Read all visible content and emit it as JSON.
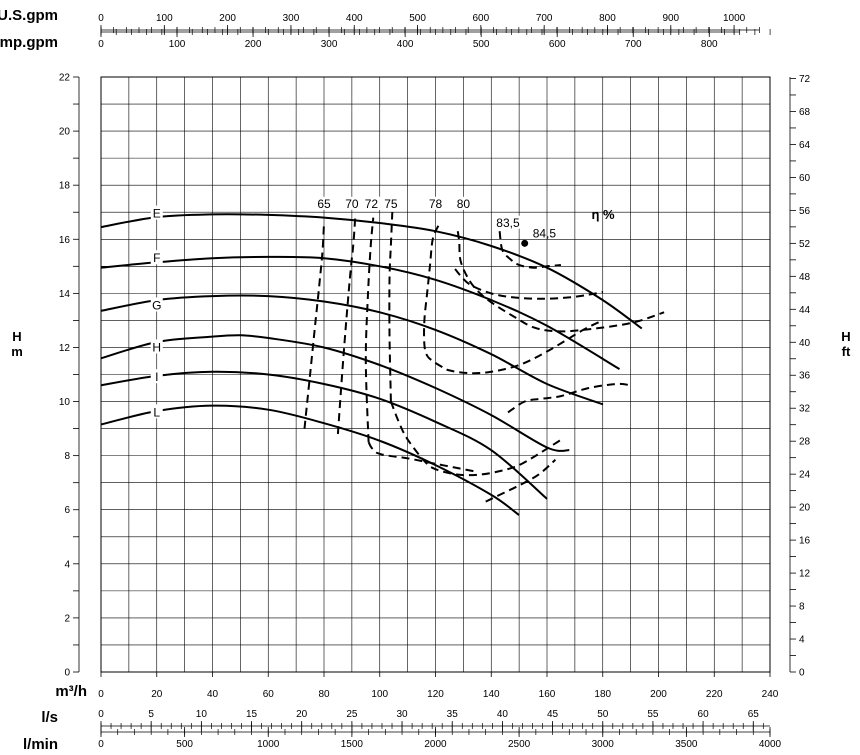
{
  "chart_data": {
    "type": "line",
    "title": "",
    "scales": {
      "us_gpm": {
        "label": "U.S.gpm",
        "ticks": [
          0,
          100,
          200,
          300,
          400,
          500,
          600,
          700,
          800,
          900,
          1000
        ],
        "minor_step": 20
      },
      "imp_gpm": {
        "label": "Imp.gpm",
        "ticks": [
          0,
          100,
          200,
          300,
          400,
          500,
          600,
          700,
          800
        ],
        "minor_step": 20
      },
      "m3h": {
        "label": "m³/h",
        "ticks": [
          0,
          20,
          40,
          60,
          80,
          100,
          120,
          140,
          160,
          180,
          200,
          220,
          240
        ]
      },
      "ls": {
        "label": "l/s",
        "ticks": [
          0,
          5,
          10,
          15,
          20,
          25,
          30,
          35,
          40,
          45,
          50,
          55,
          60,
          65
        ],
        "minor_step": 1
      },
      "lmin": {
        "label": "l/min",
        "ticks": [
          0,
          500,
          1000,
          1500,
          2000,
          2500,
          3000,
          3500,
          4000
        ],
        "minor_step": 100
      }
    },
    "xlim": [
      0,
      240
    ],
    "y_left": {
      "label_line1": "H",
      "label_line2": "m",
      "lim": [
        0,
        22
      ],
      "ticks": [
        0,
        2,
        4,
        6,
        8,
        10,
        12,
        14,
        16,
        18,
        20,
        22
      ]
    },
    "y_right": {
      "label_line1": "H",
      "label_line2": "ft",
      "lim": [
        0,
        72.18
      ],
      "ticks": [
        0,
        4,
        8,
        12,
        16,
        20,
        24,
        28,
        32,
        36,
        40,
        44,
        48,
        52,
        56,
        60,
        64,
        68,
        72
      ]
    },
    "grid": true,
    "series": [
      {
        "name": "E",
        "label_at": [
          20,
          16.95
        ],
        "x": [
          0,
          20,
          40,
          60,
          80,
          100,
          120,
          140,
          160,
          180,
          194
        ],
        "y": [
          16.45,
          16.82,
          16.92,
          16.9,
          16.8,
          16.6,
          16.3,
          15.75,
          14.95,
          13.75,
          12.7
        ]
      },
      {
        "name": "F",
        "label_at": [
          20,
          15.3
        ],
        "x": [
          0,
          20,
          40,
          60,
          80,
          100,
          120,
          140,
          160,
          186
        ],
        "y": [
          14.95,
          15.15,
          15.3,
          15.35,
          15.3,
          15.0,
          14.5,
          13.75,
          12.8,
          11.2
        ]
      },
      {
        "name": "G",
        "label_at": [
          20,
          13.55
        ],
        "x": [
          0,
          20,
          40,
          60,
          80,
          100,
          120,
          140,
          160,
          180
        ],
        "y": [
          13.35,
          13.75,
          13.9,
          13.9,
          13.7,
          13.3,
          12.65,
          11.75,
          10.65,
          9.9
        ]
      },
      {
        "name": "H",
        "label_at": [
          20,
          12.0
        ],
        "x": [
          0,
          20,
          40,
          50,
          60,
          80,
          100,
          120,
          140,
          160,
          168
        ],
        "y": [
          11.6,
          12.2,
          12.4,
          12.45,
          12.35,
          12.0,
          11.35,
          10.5,
          9.5,
          8.3,
          8.2
        ]
      },
      {
        "name": "I",
        "label_at": [
          20,
          10.9
        ],
        "x": [
          0,
          20,
          40,
          60,
          80,
          100,
          120,
          140,
          160
        ],
        "y": [
          10.6,
          10.95,
          11.1,
          11.0,
          10.65,
          10.1,
          9.25,
          8.2,
          6.4
        ]
      },
      {
        "name": "L",
        "label_at": [
          20,
          9.6
        ],
        "x": [
          0,
          20,
          40,
          60,
          80,
          100,
          120,
          140,
          150
        ],
        "y": [
          9.15,
          9.65,
          9.85,
          9.7,
          9.2,
          8.55,
          7.65,
          6.55,
          5.8
        ]
      }
    ],
    "efficiency_curves": [
      {
        "label": "65",
        "label_at": [
          80,
          17.2
        ],
        "x": [
          73,
          75,
          77,
          78.5,
          79.5,
          80
        ],
        "y": [
          9.0,
          11.0,
          13.0,
          14.5,
          15.6,
          16.6
        ]
      },
      {
        "label": "70",
        "label_at": [
          90,
          17.2
        ],
        "x": [
          85,
          86.5,
          88,
          89.5,
          90.5,
          91.2
        ],
        "y": [
          8.8,
          11.0,
          13.0,
          14.8,
          15.8,
          16.8
        ]
      },
      {
        "label": "72",
        "label_at": [
          97,
          17.2
        ],
        "x": [
          96,
          95,
          95.8,
          96.8,
          97.7
        ],
        "y": [
          8.5,
          11.5,
          14.0,
          15.8,
          16.8
        ],
        "x2": [
          96,
          97,
          99,
          103,
          110,
          120,
          130,
          135
        ],
        "y2": [
          8.5,
          8.3,
          8.1,
          8.0,
          7.9,
          7.7,
          7.5,
          7.4
        ]
      },
      {
        "label": "75",
        "label_at": [
          104,
          17.2
        ],
        "x": [
          104,
          103.5,
          103.5,
          104,
          104.5
        ],
        "y": [
          10.0,
          12.5,
          14.5,
          15.8,
          17.0
        ],
        "x2": [
          104,
          107,
          110,
          116,
          120,
          128,
          136,
          144,
          150,
          156,
          166
        ],
        "y2": [
          10.0,
          9.2,
          8.6,
          7.8,
          7.5,
          7.3,
          7.3,
          7.45,
          7.65,
          8.0,
          8.65
        ]
      },
      {
        "label": "78",
        "label_at": [
          120,
          17.2
        ],
        "x": [
          121,
          119,
          118,
          117,
          116,
          116,
          117,
          119,
          122,
          125,
          132,
          140,
          150,
          160,
          173,
          180
        ],
        "y": [
          16.5,
          16.0,
          15.0,
          14.0,
          13.0,
          12.1,
          11.7,
          11.5,
          11.3,
          11.15,
          11.05,
          11.1,
          11.35,
          11.85,
          12.65,
          13.0
        ]
      },
      {
        "label": "80",
        "label_at": [
          130,
          17.2
        ],
        "x": [
          128,
          128.5,
          129,
          132,
          136,
          141,
          148,
          155,
          163,
          173,
          190,
          202
        ],
        "y": [
          16.3,
          15.9,
          15.2,
          14.5,
          14.0,
          13.6,
          13.15,
          12.75,
          12.6,
          12.65,
          12.9,
          13.3
        ]
      },
      {
        "label": "83,5",
        "label_at": [
          146,
          16.5
        ],
        "x": [
          143,
          144,
          147,
          150,
          155,
          160,
          165
        ],
        "y": [
          16.3,
          15.6,
          15.25,
          15.05,
          14.95,
          15.0,
          15.05
        ]
      },
      {
        "label": "",
        "x": [
          127,
          132,
          140,
          148,
          158,
          168,
          175,
          180
        ],
        "y": [
          14.9,
          14.35,
          14.0,
          13.85,
          13.8,
          13.85,
          13.95,
          14.05
        ]
      },
      {
        "label": "",
        "x": [
          146,
          152,
          158,
          165,
          175,
          185,
          190
        ],
        "y": [
          9.6,
          10.0,
          10.1,
          10.2,
          10.5,
          10.65,
          10.6
        ]
      },
      {
        "label": "",
        "x": [
          138,
          143,
          150,
          157,
          163
        ],
        "y": [
          6.3,
          6.55,
          6.9,
          7.3,
          7.85
        ]
      }
    ],
    "best_point": {
      "label": "84,5",
      "x": 152,
      "y": 15.85
    },
    "efficiency_title": "η %"
  }
}
